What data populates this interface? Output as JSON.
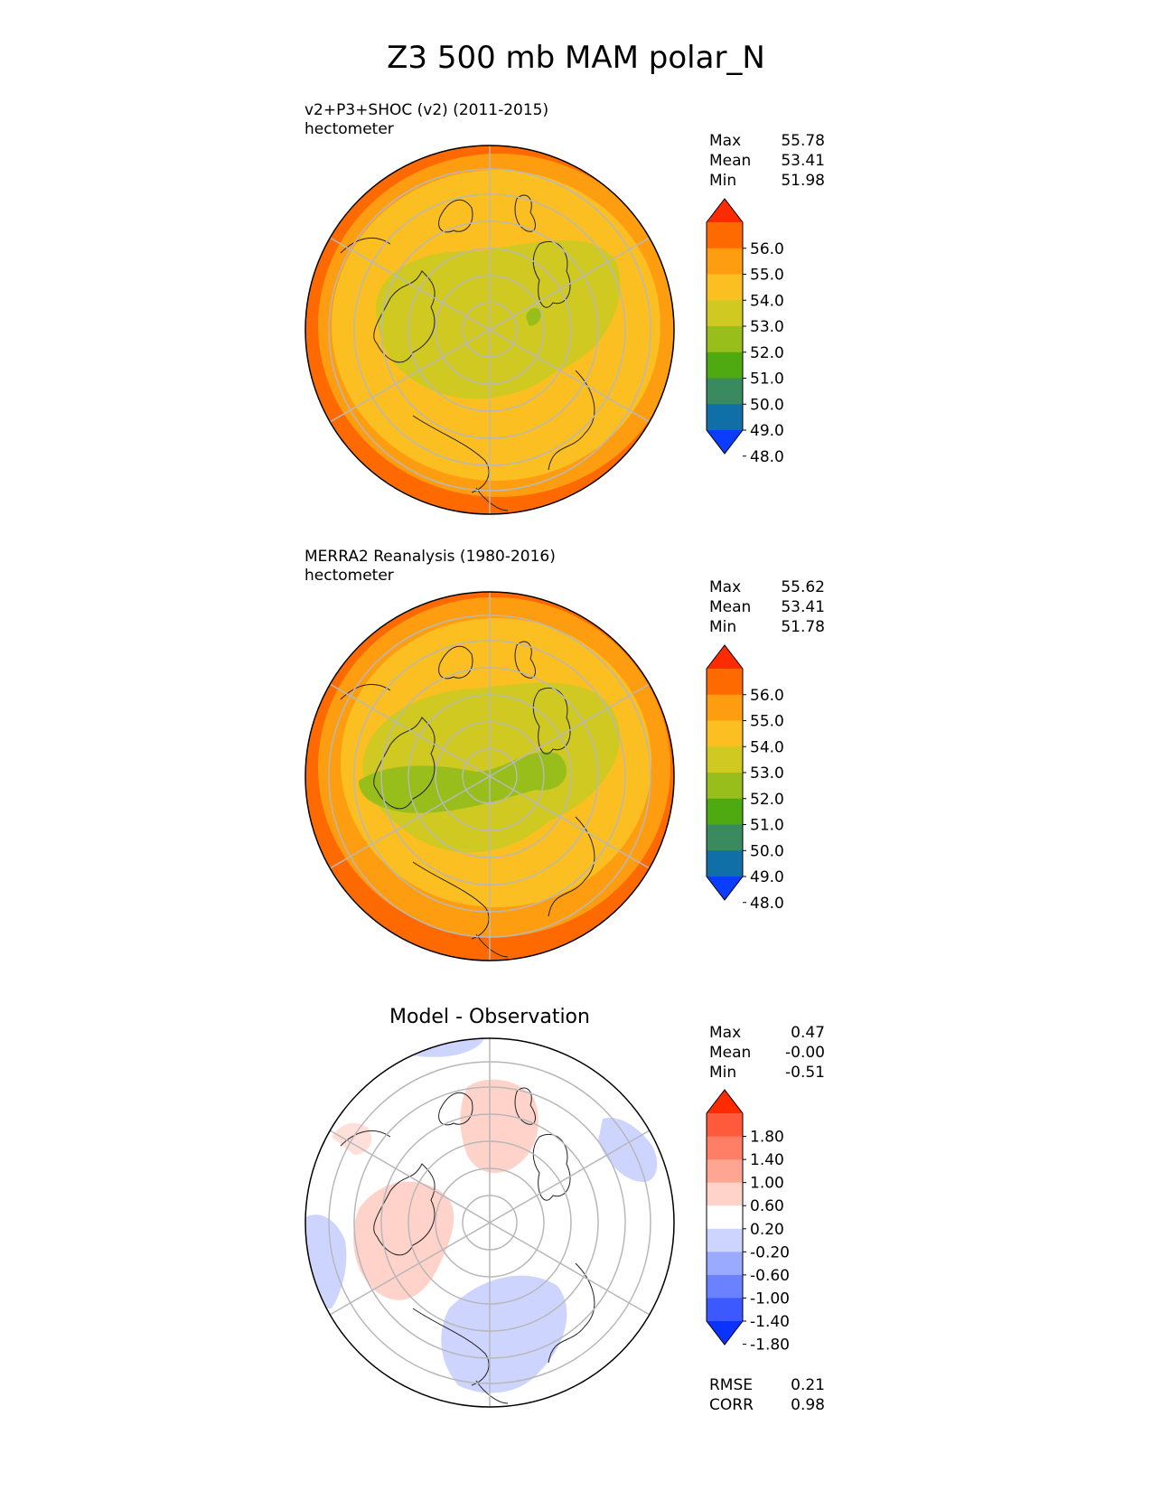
{
  "figure": {
    "title": "Z3 500 mb MAM polar_N"
  },
  "panels": [
    {
      "id": "test",
      "title_lines": [
        "v2+P3+SHOC (v2) (2011-2015)",
        "hectometer"
      ],
      "stats": [
        {
          "label": "Max",
          "value": "55.78"
        },
        {
          "label": "Mean",
          "value": "53.41"
        },
        {
          "label": "Min",
          "value": "51.98"
        }
      ],
      "colorbar": {
        "ticks": [
          "56.0",
          "55.0",
          "54.0",
          "53.0",
          "52.0",
          "51.0",
          "50.0",
          "49.0",
          "48.0"
        ],
        "colors": [
          "#ff2b00",
          "#ff6a00",
          "#ff9d10",
          "#fcbf22",
          "#d0c922",
          "#98be1b",
          "#4faa12",
          "#3a8a5f",
          "#0f6fa6",
          "#0a3dff"
        ]
      }
    },
    {
      "id": "reference",
      "title_lines": [
        "MERRA2 Reanalysis (1980-2016)",
        "hectometer"
      ],
      "stats": [
        {
          "label": "Max",
          "value": "55.62"
        },
        {
          "label": "Mean",
          "value": "53.41"
        },
        {
          "label": "Min",
          "value": "51.78"
        }
      ],
      "colorbar": {
        "ticks": [
          "56.0",
          "55.0",
          "54.0",
          "53.0",
          "52.0",
          "51.0",
          "50.0",
          "49.0",
          "48.0"
        ],
        "colors": [
          "#ff2b00",
          "#ff6a00",
          "#ff9d10",
          "#fcbf22",
          "#d0c922",
          "#98be1b",
          "#4faa12",
          "#3a8a5f",
          "#0f6fa6",
          "#0a3dff"
        ]
      }
    },
    {
      "id": "difference",
      "title_lines": [
        "Model - Observation"
      ],
      "stats": [
        {
          "label": "Max",
          "value": "0.47"
        },
        {
          "label": "Mean",
          "value": "-0.00"
        },
        {
          "label": "Min",
          "value": "-0.51"
        }
      ],
      "colorbar": {
        "ticks": [
          "1.80",
          "1.40",
          "1.00",
          "0.60",
          "0.20",
          "-0.20",
          "-0.60",
          "-1.00",
          "-1.40",
          "-1.80"
        ],
        "colors": [
          "#ff2b00",
          "#ff5a3c",
          "#ff7e66",
          "#ffa592",
          "#ffd2ca",
          "#ffffff",
          "#cdd5ff",
          "#9aabff",
          "#6a82ff",
          "#3b59ff",
          "#0a33ff"
        ]
      },
      "metrics": [
        {
          "label": "RMSE",
          "value": "0.21"
        },
        {
          "label": "CORR",
          "value": "0.98"
        }
      ]
    }
  ],
  "chart_data": [
    {
      "type": "heatmap",
      "projection": "north polar stereographic",
      "title": "v2+P3+SHOC (v2) (2011-2015)",
      "units": "hectometer",
      "levels": [
        48,
        49,
        50,
        51,
        52,
        53,
        54,
        55,
        56
      ],
      "extend": "both",
      "max": 55.78,
      "mean": 53.41,
      "min": 51.98,
      "grid": true
    },
    {
      "type": "heatmap",
      "projection": "north polar stereographic",
      "title": "MERRA2 Reanalysis (1980-2016)",
      "units": "hectometer",
      "levels": [
        48,
        49,
        50,
        51,
        52,
        53,
        54,
        55,
        56
      ],
      "extend": "both",
      "max": 55.62,
      "mean": 53.41,
      "min": 51.78,
      "grid": true
    },
    {
      "type": "heatmap",
      "projection": "north polar stereographic",
      "title": "Model - Observation",
      "levels": [
        -1.8,
        -1.4,
        -1.0,
        -0.6,
        -0.2,
        0.2,
        0.6,
        1.0,
        1.4,
        1.8
      ],
      "extend": "both",
      "max": 0.47,
      "mean": -0.0,
      "min": -0.51,
      "rmse": 0.21,
      "corr": 0.98,
      "grid": true
    }
  ]
}
